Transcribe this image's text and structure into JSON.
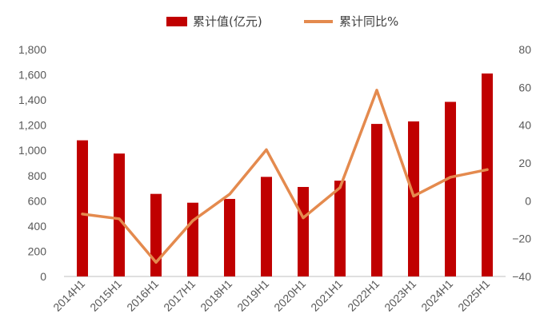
{
  "chart_data": {
    "type": "bar+line",
    "categories": [
      "2014H1",
      "2015H1",
      "2016H1",
      "2017H1",
      "2018H1",
      "2019H1",
      "2020H1",
      "2021H1",
      "2022H1",
      "2023H1",
      "2024H1",
      "2025H1"
    ],
    "series": [
      {
        "name": "累计值(亿元)",
        "type": "bar",
        "axis": "left",
        "color": "#C00000",
        "values": [
          1080,
          975,
          655,
          585,
          615,
          790,
          710,
          760,
          1210,
          1230,
          1385,
          1610
        ]
      },
      {
        "name": "累计同比%",
        "type": "line",
        "axis": "right",
        "color": "#E48A4E",
        "values": [
          -7,
          -9.5,
          -32.5,
          -10.5,
          3.5,
          27,
          -9,
          7,
          58.5,
          2.5,
          12.5,
          16.5
        ]
      }
    ],
    "y_left": {
      "min": 0,
      "max": 1800,
      "ticks": [
        0,
        200,
        400,
        600,
        800,
        1000,
        1200,
        1400,
        1600,
        1800
      ],
      "tick_labels": [
        "0",
        "200",
        "400",
        "600",
        "800",
        "1,000",
        "1,200",
        "1,400",
        "1,600",
        "1,800"
      ]
    },
    "y_right": {
      "min": -40,
      "max": 80,
      "ticks": [
        -40,
        -20,
        0,
        20,
        40,
        60,
        80
      ],
      "tick_labels": [
        "−40",
        "−20",
        "0",
        "20",
        "40",
        "60",
        "80"
      ]
    },
    "grid": false,
    "legend_position": "top-center",
    "x_label_rotation": -45
  }
}
